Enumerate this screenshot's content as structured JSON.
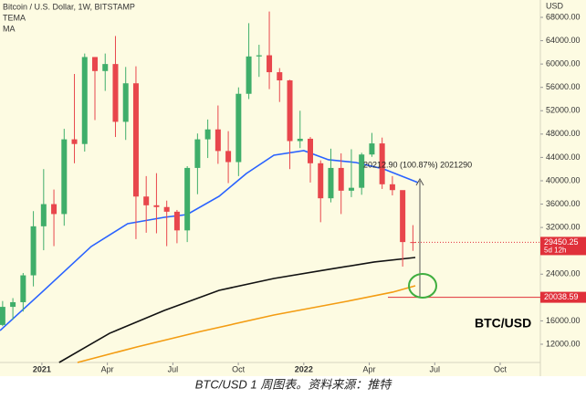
{
  "chart_data": {
    "type": "candlestick",
    "title": "Bitcoin / U.S. Dollar, 1W, BITSTAMP",
    "indicators": [
      "TEMA",
      "MA"
    ],
    "axis_unit": "USD",
    "caption": "BTC/USD 1 周图表。资料来源：推特",
    "pair_label": "BTC/USD",
    "up_color": "#3fae6a",
    "down_color": "#e8464c",
    "xlim": [
      -1.92,
      22.84
    ],
    "ylim": [
      8870,
      70970
    ],
    "xticks": [
      {
        "value": 0,
        "label": "2021"
      },
      {
        "value": 3,
        "label": "Apr"
      },
      {
        "value": 6,
        "label": "Jul"
      },
      {
        "value": 9,
        "label": "Oct"
      },
      {
        "value": 12,
        "label": "2022"
      },
      {
        "value": 15,
        "label": "Apr"
      },
      {
        "value": 18,
        "label": "Jul"
      },
      {
        "value": 21,
        "label": "Oct"
      }
    ],
    "yticks": [
      {
        "value": 68000,
        "label": "68000.00"
      },
      {
        "value": 64000,
        "label": "64000.00"
      },
      {
        "value": 60000,
        "label": "60000.00"
      },
      {
        "value": 56000,
        "label": "56000.00"
      },
      {
        "value": 52000,
        "label": "52000.00"
      },
      {
        "value": 48000,
        "label": "48000.00"
      },
      {
        "value": 44000,
        "label": "44000.00"
      },
      {
        "value": 40000,
        "label": "40000.00"
      },
      {
        "value": 36000,
        "label": "36000.00"
      },
      {
        "value": 32000,
        "label": "32000.00"
      },
      {
        "value": 24000,
        "label": "24000.00"
      },
      {
        "value": 16000,
        "label": "16000.00"
      },
      {
        "value": 12000,
        "label": "12000.00"
      }
    ],
    "candles": {
      "x": [
        -1.8,
        -1.33,
        -0.86,
        -0.39,
        0.08,
        0.55,
        1.02,
        1.49,
        1.96,
        2.43,
        2.9,
        3.37,
        3.84,
        4.31,
        4.78,
        5.25,
        5.72,
        6.19,
        6.66,
        7.13,
        7.6,
        8.07,
        8.54,
        9.01,
        9.48,
        9.95,
        10.42,
        10.89,
        11.36,
        11.83,
        12.3,
        12.77,
        13.24,
        13.71,
        14.18,
        14.65,
        15.12,
        15.59,
        16.06,
        16.53,
        17.0
      ],
      "open": [
        15300,
        18400,
        19200,
        23800,
        32200,
        36000,
        34300,
        47100,
        46300,
        61200,
        58800,
        60000,
        50100,
        56700,
        37300,
        35800,
        35500,
        34700,
        31500,
        42200,
        47100,
        48800,
        45100,
        43200,
        54900,
        61300,
        61500,
        58600,
        57200,
        46800,
        47200,
        43000,
        37000,
        42200,
        38300,
        38800,
        44500,
        46400,
        39400,
        38400,
        29500
      ],
      "high": [
        19400,
        19900,
        24200,
        34800,
        42000,
        38500,
        48900,
        58300,
        61800,
        61200,
        61800,
        64800,
        59500,
        59600,
        40800,
        41300,
        36600,
        35000,
        42500,
        48100,
        50500,
        52900,
        48500,
        56000,
        67000,
        63300,
        69000,
        59300,
        57300,
        52000,
        47500,
        43500,
        45500,
        44700,
        45400,
        44800,
        48200,
        47400,
        40800,
        38300,
        32400
      ],
      "low": [
        15100,
        16200,
        17600,
        21900,
        28100,
        28800,
        32300,
        43000,
        45000,
        50400,
        55400,
        47500,
        47000,
        30000,
        31100,
        31000,
        28800,
        29300,
        29500,
        37700,
        43900,
        42900,
        39600,
        40800,
        54000,
        57800,
        55700,
        53500,
        42000,
        45600,
        39700,
        32900,
        36300,
        34300,
        37200,
        37600,
        44100,
        38600,
        37500,
        25300,
        28000
      ],
      "close": [
        18400,
        19200,
        23800,
        32200,
        36000,
        34300,
        47100,
        46300,
        61200,
        58800,
        60000,
        50100,
        56700,
        37300,
        35800,
        35500,
        34700,
        31500,
        42200,
        47100,
        48800,
        45100,
        43200,
        54900,
        61300,
        61500,
        58600,
        57200,
        46800,
        47200,
        43000,
        37000,
        42200,
        38300,
        38800,
        44500,
        46400,
        39400,
        38400,
        29500,
        29450
      ]
    },
    "series": [
      {
        "color": "#2962ff",
        "x": [
          -1.92,
          0,
          2.26,
          3.93,
          5.61,
          6.65,
          8.12,
          9.37,
          10.63,
          12.0,
          13.13,
          14.39,
          15.65,
          17.24
        ],
        "values": [
          14340,
          20900,
          28740,
          32650,
          33740,
          34210,
          37340,
          41250,
          44380,
          45160,
          43600,
          43130,
          42030,
          39690
        ]
      },
      {
        "color": "#111111",
        "x": [
          0.79,
          3.1,
          5.61,
          8.12,
          10.63,
          13.13,
          15.23,
          17.11
        ],
        "values": [
          8870,
          13870,
          17780,
          21230,
          23260,
          24820,
          26080,
          26860
        ]
      },
      {
        "color": "#f39c12",
        "x": [
          1.63,
          4.35,
          7.28,
          10.63,
          13.98,
          16.07,
          17.11
        ],
        "values": [
          8870,
          11530,
          14190,
          17000,
          19350,
          20920,
          22010
        ]
      }
    ],
    "last_price": 29450.25,
    "time_left": "5d 12h",
    "level_line": 20038.59,
    "measure_label": "20212.90 (100.87%) 2021290"
  }
}
